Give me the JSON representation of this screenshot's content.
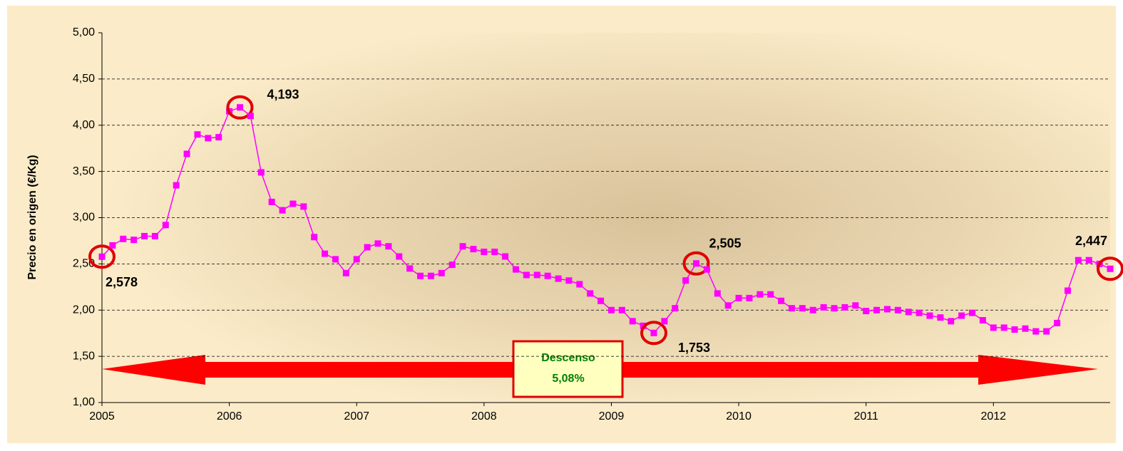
{
  "chart_data": {
    "type": "line",
    "y_label": "Precio en origen (€/Kg)",
    "categories": [
      "2005",
      null,
      null,
      null,
      null,
      null,
      null,
      null,
      null,
      null,
      null,
      null,
      "2006",
      null,
      null,
      null,
      null,
      null,
      null,
      null,
      null,
      null,
      null,
      null,
      "2007",
      null,
      null,
      null,
      null,
      null,
      null,
      null,
      null,
      null,
      null,
      null,
      "2008",
      null,
      null,
      null,
      null,
      null,
      null,
      null,
      null,
      null,
      null,
      null,
      "2009",
      null,
      null,
      null,
      null,
      null,
      null,
      null,
      null,
      null,
      null,
      null,
      "2010",
      null,
      null,
      null,
      null,
      null,
      null,
      null,
      null,
      null,
      null,
      null,
      "2011",
      null,
      null,
      null,
      null,
      null,
      null,
      null,
      null,
      null,
      null,
      null,
      "2012",
      null,
      null,
      null,
      null,
      null,
      null,
      null,
      null,
      null,
      null,
      null
    ],
    "series": [
      {
        "name": "Precio",
        "color": "#ff00ff",
        "values": [
          2.578,
          2.7,
          2.77,
          2.76,
          2.8,
          2.8,
          2.92,
          3.35,
          3.69,
          3.9,
          3.86,
          3.87,
          4.15,
          4.193,
          4.1,
          3.49,
          3.17,
          3.08,
          3.15,
          3.12,
          2.79,
          2.61,
          2.55,
          2.4,
          2.55,
          2.68,
          2.72,
          2.69,
          2.58,
          2.45,
          2.37,
          2.37,
          2.4,
          2.49,
          2.69,
          2.66,
          2.63,
          2.63,
          2.58,
          2.44,
          2.38,
          2.38,
          2.37,
          2.34,
          2.32,
          2.28,
          2.18,
          2.1,
          2.0,
          2.0,
          1.88,
          1.83,
          1.753,
          1.88,
          2.02,
          2.32,
          2.505,
          2.44,
          2.18,
          2.05,
          2.13,
          2.13,
          2.17,
          2.17,
          2.1,
          2.02,
          2.02,
          2.0,
          2.03,
          2.02,
          2.03,
          2.05,
          1.99,
          2.0,
          2.01,
          2.0,
          1.98,
          1.97,
          1.94,
          1.92,
          1.88,
          1.94,
          1.97,
          1.89,
          1.81,
          1.81,
          1.79,
          1.8,
          1.77,
          1.77,
          1.86,
          2.21,
          2.54,
          2.54,
          2.5,
          2.447
        ],
        "value_labels": [
          "2,578",
          null,
          null,
          null,
          null,
          null,
          null,
          null,
          null,
          null,
          null,
          null,
          null,
          "4,193",
          null,
          null,
          null,
          null,
          null,
          null,
          null,
          null,
          null,
          null,
          null,
          null,
          null,
          null,
          null,
          null,
          null,
          null,
          null,
          null,
          null,
          null,
          null,
          null,
          null,
          null,
          null,
          null,
          null,
          null,
          null,
          null,
          null,
          null,
          null,
          null,
          null,
          null,
          "1,753",
          null,
          null,
          null,
          "2,505",
          null,
          null,
          null,
          null,
          null,
          null,
          null,
          null,
          null,
          null,
          null,
          null,
          null,
          null,
          null,
          null,
          null,
          null,
          null,
          null,
          null,
          null,
          null,
          null,
          null,
          null,
          null,
          null,
          null,
          null,
          null,
          null,
          null,
          null,
          null,
          null,
          null,
          null,
          "2,447"
        ]
      }
    ],
    "ylim": [
      1,
      5
    ],
    "yticks": [
      {
        "value": 1,
        "label": "1,00"
      },
      {
        "value": 1.5,
        "label": "1,50"
      },
      {
        "value": 2,
        "label": "2,00"
      },
      {
        "value": 2.5,
        "label": "2,50"
      },
      {
        "value": 3,
        "label": "3,00"
      },
      {
        "value": 3.5,
        "label": "3,50"
      },
      {
        "value": 4,
        "label": "4,00"
      },
      {
        "value": 4.5,
        "label": "4,50"
      },
      {
        "value": 5,
        "label": "5,00"
      }
    ],
    "grid": true,
    "annotation": {
      "title": "Descenso",
      "text": "5,08%"
    }
  }
}
